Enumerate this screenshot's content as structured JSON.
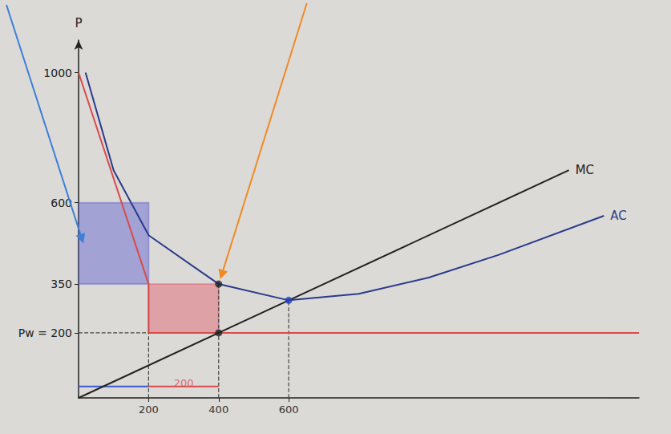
{
  "chart_data": {
    "type": "line",
    "ylabel": "P",
    "xlim": [
      0,
      1600
    ],
    "ylim": [
      0,
      1100
    ],
    "xticks": [
      200,
      400,
      600
    ],
    "yticks": [
      {
        "value": 200,
        "label": "Pw = 200"
      },
      350,
      600,
      1000
    ],
    "grid": false,
    "series": [
      {
        "type": "rect",
        "color": "#5a5fd0",
        "x": [
          0,
          200
        ],
        "values": [
          350,
          600
        ]
      },
      {
        "type": "rect",
        "color": "#e05a6a",
        "x": [
          200,
          400
        ],
        "values": [
          200,
          350
        ]
      },
      {
        "type": "line",
        "line_style": "dashed",
        "color": "#444444",
        "x": [
          200,
          200
        ],
        "values": [
          0,
          200
        ]
      },
      {
        "type": "line",
        "line_style": "dashed",
        "color": "#444444",
        "x": [
          400,
          400
        ],
        "values": [
          0,
          350
        ]
      },
      {
        "type": "line",
        "line_style": "dashed",
        "color": "#444444",
        "x": [
          600,
          600
        ],
        "values": [
          0,
          300
        ]
      },
      {
        "type": "line",
        "line_style": "dashed",
        "color": "#444444",
        "x": [
          0,
          200
        ],
        "values": [
          200,
          200
        ]
      },
      {
        "type": "line",
        "color": "#3a5ad0",
        "x": [
          0,
          200
        ],
        "values": [
          35,
          35
        ]
      },
      {
        "type": "line",
        "color": "#d94a4a",
        "x": [
          200,
          400
        ],
        "values": [
          35,
          35
        ]
      },
      {
        "type": "line",
        "color": "#d94a4a",
        "x": [
          0,
          200,
          200,
          1600
        ],
        "values": [
          1000,
          350,
          200,
          200
        ]
      },
      {
        "name": "MC",
        "type": "line",
        "color": "#222222",
        "x": [
          0,
          400,
          600,
          1400
        ],
        "values": [
          0,
          200,
          300,
          700
        ]
      },
      {
        "name": "AC",
        "type": "line",
        "color": "#2a3a8a",
        "x": [
          20,
          100,
          200,
          400,
          600,
          800,
          1000,
          1200,
          1500
        ],
        "values": [
          1000,
          700,
          500,
          350,
          300,
          320,
          370,
          440,
          560
        ]
      },
      {
        "type": "scatter",
        "marker": "circle",
        "color": "#222222",
        "x": [
          400,
          400
        ],
        "values": [
          350,
          200
        ]
      },
      {
        "type": "scatter",
        "marker": "circle",
        "color": "#1f3fbf",
        "x": [
          600
        ],
        "values": [
          300
        ]
      },
      {
        "type": "text",
        "text": "200",
        "color": "#d94a4a",
        "x": [
          300
        ],
        "values": [
          45
        ]
      }
    ]
  }
}
